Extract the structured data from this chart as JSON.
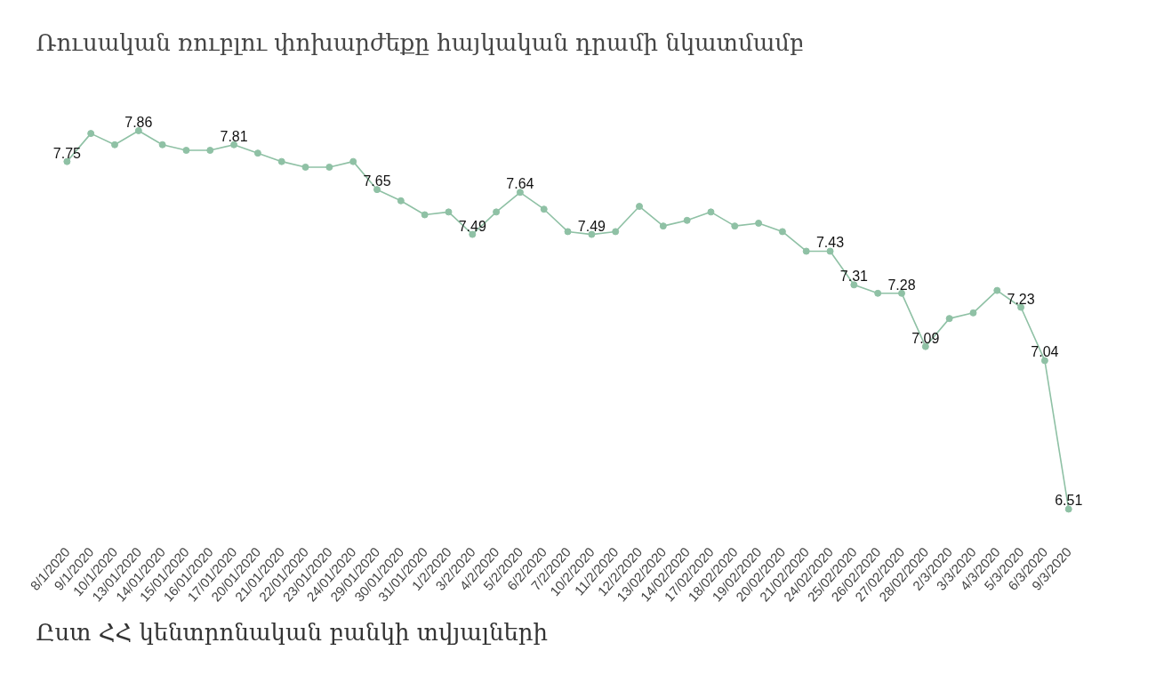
{
  "chart_data": {
    "type": "line",
    "title": "Ռուսական ռուբլու փոխարժեքը հայկական դրամի նկատմամբ",
    "categories": [
      "8/1/2020",
      "9/1/2020",
      "10/1/2020",
      "13/01/2020",
      "14/01/2020",
      "15/01/2020",
      "16/01/2020",
      "17/01/2020",
      "20/01/2020",
      "21/01/2020",
      "22/01/2020",
      "23/01/2020",
      "24/01/2020",
      "29/01/2020",
      "30/01/2020",
      "31/01/2020",
      "1/2/2020",
      "3/2/2020",
      "4/2/2020",
      "5/2/2020",
      "6/2/2020",
      "7/2/2020",
      "10/2/2020",
      "11/2/2020",
      "12/2/2020",
      "13/02/2020",
      "14/02/2020",
      "17/02/2020",
      "18/02/2020",
      "19/02/2020",
      "20/02/2020",
      "21/02/2020",
      "24/02/2020",
      "25/02/2020",
      "26/02/2020",
      "27/02/2020",
      "28/02/2020",
      "2/3/2020",
      "3/3/2020",
      "4/3/2020",
      "5/3/2020",
      "6/3/2020",
      "9/3/2020"
    ],
    "series": [
      {
        "color": "#8fc1a5",
        "values": [
          7.75,
          7.85,
          7.81,
          7.86,
          7.81,
          7.79,
          7.79,
          7.81,
          7.78,
          7.75,
          7.73,
          7.73,
          7.75,
          7.65,
          7.61,
          7.56,
          7.57,
          7.49,
          7.57,
          7.64,
          7.58,
          7.5,
          7.49,
          7.5,
          7.59,
          7.52,
          7.54,
          7.57,
          7.52,
          7.53,
          7.5,
          7.43,
          7.43,
          7.31,
          7.28,
          7.28,
          7.09,
          7.19,
          7.21,
          7.29,
          7.23,
          7.04,
          6.51
        ],
        "value_labels": [
          "7.75",
          null,
          null,
          "7.86",
          null,
          null,
          null,
          "7.81",
          null,
          null,
          null,
          null,
          null,
          "7.65",
          null,
          null,
          null,
          "7.49",
          null,
          "7.64",
          null,
          null,
          "7.49",
          null,
          null,
          null,
          null,
          null,
          null,
          null,
          null,
          null,
          "7.43",
          "7.31",
          null,
          "7.28",
          "7.09",
          null,
          null,
          null,
          "7.23",
          "7.04",
          "6.51"
        ]
      }
    ],
    "marker": "circle",
    "line_style": "solid",
    "grid": false,
    "annotations": [
      "Ըստ ՀՀ կենտրոնական բանկի տվյալների"
    ]
  }
}
